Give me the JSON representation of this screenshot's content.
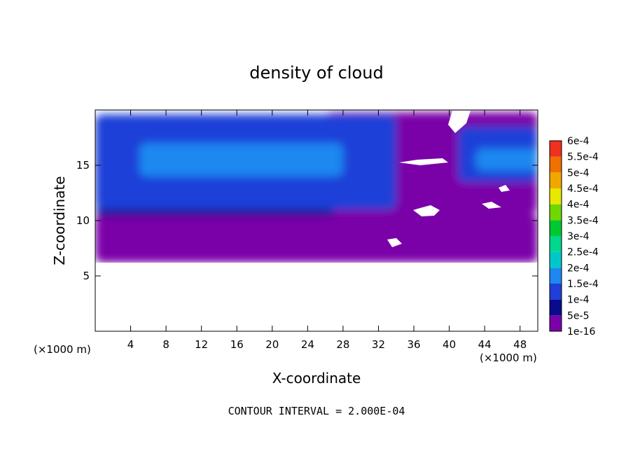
{
  "chart_data": {
    "type": "heatmap",
    "title": "density of cloud",
    "xlabel": "X-coordinate",
    "ylabel": "Z-coordinate",
    "x_unit": "(×1000 m)",
    "y_unit": "(×1000 m)",
    "footer": "CONTOUR INTERVAL = 2.000E-04",
    "xlim": [
      0,
      50
    ],
    "ylim": [
      0,
      20
    ],
    "x_ticks": [
      4,
      8,
      12,
      16,
      20,
      24,
      28,
      32,
      36,
      40,
      44,
      48
    ],
    "y_ticks": [
      5,
      10,
      15
    ],
    "colorbar": {
      "levels": [
        "1e-16",
        "5e-5",
        "1e-4",
        "1.5e-4",
        "2e-4",
        "2.5e-4",
        "3e-4",
        "3.5e-4",
        "4e-4",
        "4.5e-4",
        "5e-4",
        "5.5e-4",
        "6e-4"
      ],
      "colors": [
        "#7a00a8",
        "#0a0a8c",
        "#1f3fd8",
        "#1e88f0",
        "#00c8c8",
        "#00d890",
        "#00c830",
        "#70d800",
        "#e8e800",
        "#f0a800",
        "#f07000",
        "#f03020",
        "#f08a8a"
      ]
    },
    "regions": [
      {
        "level": "1e-16",
        "x": [
          0,
          50
        ],
        "y": [
          6.2,
          10.6
        ]
      },
      {
        "level": "1e-16",
        "x": [
          26,
          50
        ],
        "y": [
          10.6,
          19.8
        ]
      },
      {
        "level": "5e-5",
        "x": [
          0,
          27
        ],
        "y": [
          10.4,
          11.2
        ]
      },
      {
        "level": "1e-4",
        "x": [
          0,
          34
        ],
        "y": [
          11,
          19.6
        ]
      },
      {
        "level": "1.5e-4",
        "x": [
          5,
          28
        ],
        "y": [
          14,
          17
        ]
      },
      {
        "level": "1e-4",
        "x": [
          41,
          50
        ],
        "y": [
          13.5,
          18.5
        ]
      },
      {
        "level": "1.5e-4",
        "x": [
          43,
          50
        ],
        "y": [
          14.5,
          16.5
        ]
      }
    ]
  }
}
